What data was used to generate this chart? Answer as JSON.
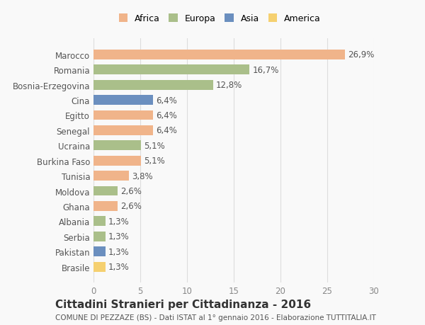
{
  "countries": [
    "Marocco",
    "Romania",
    "Bosnia-Erzegovina",
    "Cina",
    "Egitto",
    "Senegal",
    "Ucraina",
    "Burkina Faso",
    "Tunisia",
    "Moldova",
    "Ghana",
    "Albania",
    "Serbia",
    "Pakistan",
    "Brasile"
  ],
  "values": [
    26.9,
    16.7,
    12.8,
    6.4,
    6.4,
    6.4,
    5.1,
    5.1,
    3.8,
    2.6,
    2.6,
    1.3,
    1.3,
    1.3,
    1.3
  ],
  "labels": [
    "26,9%",
    "16,7%",
    "12,8%",
    "6,4%",
    "6,4%",
    "6,4%",
    "5,1%",
    "5,1%",
    "3,8%",
    "2,6%",
    "2,6%",
    "1,3%",
    "1,3%",
    "1,3%",
    "1,3%"
  ],
  "continents": [
    "Africa",
    "Europa",
    "Europa",
    "Asia",
    "Africa",
    "Africa",
    "Europa",
    "Africa",
    "Africa",
    "Europa",
    "Africa",
    "Europa",
    "Europa",
    "Asia",
    "America"
  ],
  "continent_colors": {
    "Africa": "#F0B48A",
    "Europa": "#AABF8A",
    "Asia": "#6B8FBF",
    "America": "#F5D070"
  },
  "legend_order": [
    "Africa",
    "Europa",
    "Asia",
    "America"
  ],
  "legend_colors": [
    "#F0B48A",
    "#AABF8A",
    "#6B8FBF",
    "#F5D070"
  ],
  "xlim": [
    0,
    30
  ],
  "xticks": [
    0,
    5,
    10,
    15,
    20,
    25,
    30
  ],
  "title": "Cittadini Stranieri per Cittadinanza - 2016",
  "subtitle": "COMUNE DI PEZZAZE (BS) - Dati ISTAT al 1° gennaio 2016 - Elaborazione TUTTITALIA.IT",
  "bg_color": "#f9f9f9",
  "bar_height": 0.65,
  "label_fontsize": 8.5,
  "tick_fontsize": 8.5,
  "title_fontsize": 11,
  "subtitle_fontsize": 7.5
}
